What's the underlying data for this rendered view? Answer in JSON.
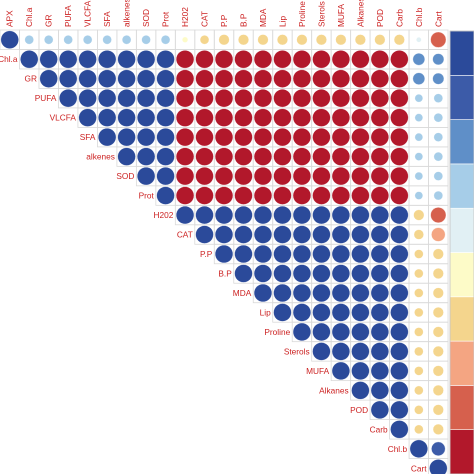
{
  "chart_data": {
    "type": "heatmap",
    "variables": [
      "APX",
      "Chl.a",
      "GR",
      "PUFA",
      "VLCFA",
      "SFA",
      "alkenes",
      "SOD",
      "Prot",
      "H202",
      "CAT",
      "P.P",
      "B.P",
      "MDA",
      "Lip",
      "Proline",
      "Sterols",
      "MUFA",
      "Alkanes",
      "POD",
      "Carb",
      "Chl.b",
      "Cart"
    ],
    "matrix_shape": "upper-triangular",
    "mark": "circle",
    "value_range": [
      -1,
      1
    ],
    "row_labels_rows": [
      1,
      2,
      3,
      4,
      5,
      6,
      7,
      8,
      9,
      10,
      11,
      12,
      13,
      14,
      15,
      16,
      17,
      18,
      19,
      20,
      21,
      22
    ],
    "correlations": [
      {
        "row": "APX",
        "values": [
          1,
          0.25,
          0.25,
          0.25,
          0.25,
          0.25,
          0.25,
          0.25,
          0.25,
          -0.1,
          -0.25,
          -0.35,
          -0.35,
          -0.35,
          -0.35,
          -0.35,
          -0.35,
          -0.35,
          -0.35,
          -0.35,
          -0.35,
          0.08,
          -0.75
        ]
      },
      {
        "row": "Chl.a",
        "values": [
          0.25,
          1,
          1,
          1,
          1,
          1,
          1,
          1,
          1,
          -1,
          -1,
          -1,
          -1,
          -1,
          -1,
          -1,
          -1,
          -1,
          -1,
          -1,
          -1,
          0.45,
          0.4
        ]
      },
      {
        "row": "GR",
        "values": [
          0.25,
          1,
          1,
          1,
          1,
          1,
          1,
          1,
          1,
          -1,
          -1,
          -1,
          -1,
          -1,
          -1,
          -1,
          -1,
          -1,
          -1,
          -1,
          -1,
          0.45,
          0.4
        ]
      },
      {
        "row": "PUFA",
        "values": [
          0.25,
          1,
          1,
          1,
          1,
          1,
          1,
          1,
          1,
          -1,
          -1,
          -1,
          -1,
          -1,
          -1,
          -1,
          -1,
          -1,
          -1,
          -1,
          -1,
          0.2,
          0.25
        ]
      },
      {
        "row": "VLCFA",
        "values": [
          0.25,
          1,
          1,
          1,
          1,
          1,
          1,
          1,
          1,
          -1,
          -1,
          -1,
          -1,
          -1,
          -1,
          -1,
          -1,
          -1,
          -1,
          -1,
          -1,
          0.2,
          0.25
        ]
      },
      {
        "row": "SFA",
        "values": [
          0.25,
          1,
          1,
          1,
          1,
          1,
          1,
          1,
          1,
          -1,
          -1,
          -1,
          -1,
          -1,
          -1,
          -1,
          -1,
          -1,
          -1,
          -1,
          -1,
          0.2,
          0.25
        ]
      },
      {
        "row": "alkenes",
        "values": [
          0.25,
          1,
          1,
          1,
          1,
          1,
          1,
          1,
          1,
          -1,
          -1,
          -1,
          -1,
          -1,
          -1,
          -1,
          -1,
          -1,
          -1,
          -1,
          -1,
          0.2,
          0.25
        ]
      },
      {
        "row": "SOD",
        "values": [
          0.25,
          1,
          1,
          1,
          1,
          1,
          1,
          1,
          1,
          -1,
          -1,
          -1,
          -1,
          -1,
          -1,
          -1,
          -1,
          -1,
          -1,
          -1,
          -1,
          0.2,
          0.25
        ]
      },
      {
        "row": "Prot",
        "values": [
          0.25,
          1,
          1,
          1,
          1,
          1,
          1,
          1,
          1,
          -1,
          -1,
          -1,
          -1,
          -1,
          -1,
          -1,
          -1,
          -1,
          -1,
          -1,
          -1,
          0.2,
          0.25
        ]
      },
      {
        "row": "H202",
        "values": [
          -0.1,
          -1,
          -1,
          -1,
          -1,
          -1,
          -1,
          -1,
          -1,
          1,
          1,
          1,
          1,
          1,
          1,
          1,
          1,
          1,
          1,
          1,
          1,
          -0.35,
          -0.75
        ]
      },
      {
        "row": "CAT",
        "values": [
          -0.25,
          -1,
          -1,
          -1,
          -1,
          -1,
          -1,
          -1,
          -1,
          1,
          1,
          1,
          1,
          1,
          1,
          1,
          1,
          1,
          1,
          1,
          1,
          -0.3,
          -0.6
        ]
      },
      {
        "row": "P.P",
        "values": [
          -0.35,
          -1,
          -1,
          -1,
          -1,
          -1,
          -1,
          -1,
          -1,
          1,
          1,
          1,
          1,
          1,
          1,
          1,
          1,
          1,
          1,
          1,
          1,
          -0.25,
          -0.35
        ]
      },
      {
        "row": "B.P",
        "values": [
          -0.35,
          -1,
          -1,
          -1,
          -1,
          -1,
          -1,
          -1,
          -1,
          1,
          1,
          1,
          1,
          1,
          1,
          1,
          1,
          1,
          1,
          1,
          1,
          -0.25,
          -0.35
        ]
      },
      {
        "row": "MDA",
        "values": [
          -0.35,
          -1,
          -1,
          -1,
          -1,
          -1,
          -1,
          -1,
          -1,
          1,
          1,
          1,
          1,
          1,
          1,
          1,
          1,
          1,
          1,
          1,
          1,
          -0.25,
          -0.35
        ]
      },
      {
        "row": "Lip",
        "values": [
          -0.35,
          -1,
          -1,
          -1,
          -1,
          -1,
          -1,
          -1,
          -1,
          1,
          1,
          1,
          1,
          1,
          1,
          1,
          1,
          1,
          1,
          1,
          1,
          -0.25,
          -0.35
        ]
      },
      {
        "row": "Proline",
        "values": [
          -0.35,
          -1,
          -1,
          -1,
          -1,
          -1,
          -1,
          -1,
          -1,
          1,
          1,
          1,
          1,
          1,
          1,
          1,
          1,
          1,
          1,
          1,
          1,
          -0.25,
          -0.35
        ]
      },
      {
        "row": "Sterols",
        "values": [
          -0.35,
          -1,
          -1,
          -1,
          -1,
          -1,
          -1,
          -1,
          -1,
          1,
          1,
          1,
          1,
          1,
          1,
          1,
          1,
          1,
          1,
          1,
          1,
          -0.25,
          -0.35
        ]
      },
      {
        "row": "MUFA",
        "values": [
          -0.35,
          -1,
          -1,
          -1,
          -1,
          -1,
          -1,
          -1,
          -1,
          1,
          1,
          1,
          1,
          1,
          1,
          1,
          1,
          1,
          1,
          1,
          1,
          -0.25,
          -0.35
        ]
      },
      {
        "row": "Alkanes",
        "values": [
          -0.35,
          -1,
          -1,
          -1,
          -1,
          -1,
          -1,
          -1,
          -1,
          1,
          1,
          1,
          1,
          1,
          1,
          1,
          1,
          1,
          1,
          1,
          1,
          -0.25,
          -0.35
        ]
      },
      {
        "row": "POD",
        "values": [
          -0.35,
          -1,
          -1,
          -1,
          -1,
          -1,
          -1,
          -1,
          -1,
          1,
          1,
          1,
          1,
          1,
          1,
          1,
          1,
          1,
          1,
          1,
          1,
          -0.25,
          -0.35
        ]
      },
      {
        "row": "Carb",
        "values": [
          -0.35,
          -1,
          -1,
          -1,
          -1,
          -1,
          -1,
          -1,
          -1,
          1,
          1,
          1,
          1,
          1,
          1,
          1,
          1,
          1,
          1,
          1,
          1,
          -0.25,
          -0.35
        ]
      },
      {
        "row": "Chl.b",
        "values": [
          0.08,
          0.45,
          0.45,
          0.2,
          0.2,
          0.2,
          0.2,
          0.2,
          0.2,
          -0.35,
          -0.3,
          -0.25,
          -0.25,
          -0.25,
          -0.25,
          -0.25,
          -0.25,
          -0.25,
          -0.25,
          -0.25,
          -0.25,
          1,
          0.6
        ]
      },
      {
        "row": "Cart",
        "values": [
          -0.75,
          0.4,
          0.4,
          0.25,
          0.25,
          0.25,
          0.25,
          0.25,
          0.25,
          -0.75,
          -0.6,
          -0.35,
          -0.35,
          -0.35,
          -0.35,
          -0.35,
          -0.35,
          -0.35,
          -0.35,
          -0.35,
          -0.35,
          0.6,
          1
        ]
      }
    ],
    "colorbar": {
      "range": [
        -1,
        1
      ],
      "colors_bottom_to_top": [
        "#B2182B",
        "#D6604D",
        "#F4A582",
        "#F4D58D",
        "#FDFBC8",
        "#E1F0F4",
        "#A6CDE8",
        "#5F8FC8",
        "#3C5BA8",
        "#2B4A9A"
      ]
    },
    "colors": {
      "label": "#CC2222",
      "grid": "#D9D9D9",
      "positive": "#3B5BA9",
      "negative": "#B2182B"
    },
    "grid": true,
    "legend_position": "right"
  }
}
